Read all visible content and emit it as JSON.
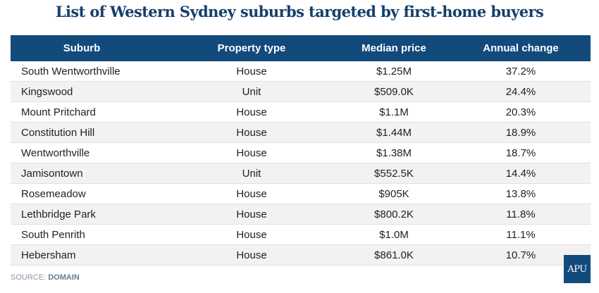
{
  "title": "List of Western Sydney suburbs targeted by first-home buyers",
  "columns": [
    "Suburb",
    "Property type",
    "Median price",
    "Annual change"
  ],
  "rows": [
    [
      "South Wentworthville",
      "House",
      "$1.25M",
      "37.2%"
    ],
    [
      "Kingswood",
      "Unit",
      "$509.0K",
      "24.4%"
    ],
    [
      "Mount Pritchard",
      "House",
      "$1.1M",
      "20.3%"
    ],
    [
      "Constitution Hill",
      "House",
      "$1.44M",
      "18.9%"
    ],
    [
      "Wentworthville",
      "House",
      "$1.38M",
      "18.7%"
    ],
    [
      "Jamisontown",
      "Unit",
      "$552.5K",
      "14.4%"
    ],
    [
      "Rosemeadow",
      "House",
      "$905K",
      "13.8%"
    ],
    [
      "Lethbridge Park",
      "House",
      "$800.2K",
      "11.8%"
    ],
    [
      "South Penrith",
      "House",
      "$1.0M",
      "11.1%"
    ],
    [
      "Hebersham",
      "House",
      "$861.0K",
      "10.7%"
    ]
  ],
  "source_label": "SOURCE:",
  "source_name": "DOMAIN",
  "logo": "APU"
}
